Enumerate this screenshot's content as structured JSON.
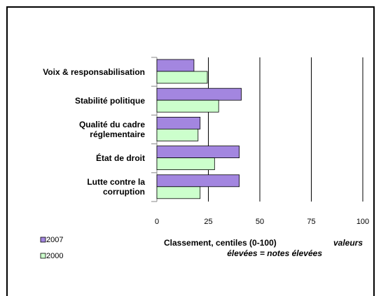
{
  "chart_data": {
    "type": "barh",
    "categories": [
      "Voix & responsabilisation",
      "Stabilité politique",
      "Qualité du cadre réglementaire",
      "État de droit",
      "Lutte contre la corruption"
    ],
    "series": [
      {
        "name": "2007",
        "color": "#a386e0",
        "values": [
          18,
          41,
          21,
          40,
          40
        ]
      },
      {
        "name": "2000",
        "color": "#ccffcc",
        "values": [
          24.5,
          30,
          20,
          28,
          21
        ]
      }
    ],
    "xlim": [
      0,
      100
    ],
    "xticks": [
      0,
      25,
      50,
      75,
      100
    ],
    "grid": true,
    "x_label": "Classement, centiles (0-100)",
    "annotation": [
      "valeurs",
      "élevées = notes élevées"
    ]
  }
}
